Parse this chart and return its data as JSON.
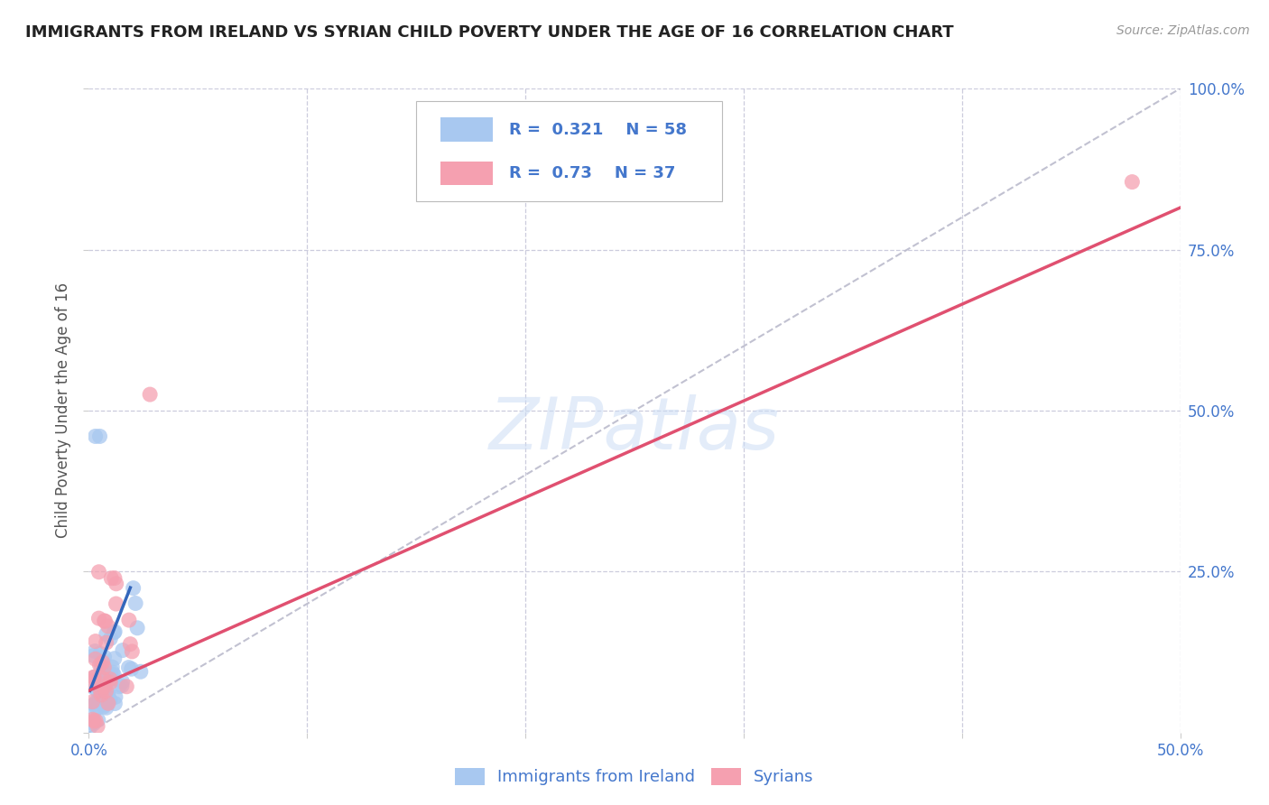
{
  "title": "IMMIGRANTS FROM IRELAND VS SYRIAN CHILD POVERTY UNDER THE AGE OF 16 CORRELATION CHART",
  "source": "Source: ZipAtlas.com",
  "ylabel": "Child Poverty Under the Age of 16",
  "xlim": [
    0.0,
    0.5
  ],
  "ylim": [
    0.0,
    1.0
  ],
  "ireland_R": 0.321,
  "ireland_N": 58,
  "syria_R": 0.73,
  "syria_N": 37,
  "ireland_color": "#a8c8f0",
  "syria_color": "#f5a0b0",
  "ireland_line_color": "#3366bb",
  "syria_line_color": "#e05070",
  "ref_line_color": "#bbbbcc",
  "watermark": "ZIPatlas",
  "legend_label_ireland": "Immigrants from Ireland",
  "legend_label_syria": "Syrians",
  "background_color": "#ffffff",
  "grid_color": "#ccccdd",
  "title_color": "#222222",
  "axis_label_color": "#555555",
  "tick_label_color": "#4477cc",
  "r_label_color": "#4477cc"
}
